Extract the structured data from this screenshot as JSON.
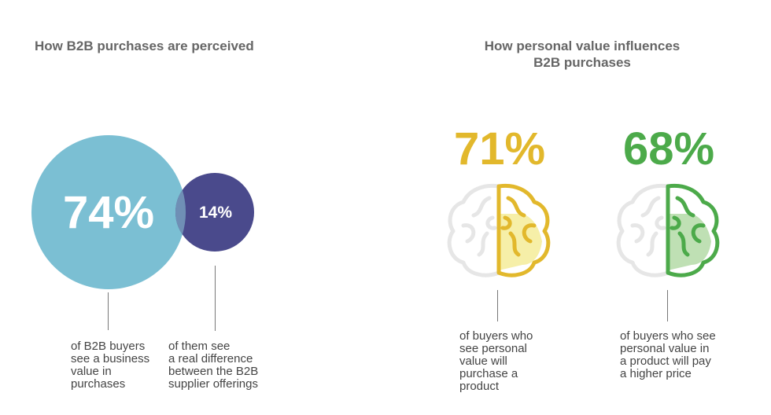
{
  "left_panel": {
    "title": "How B2B purchases are perceived",
    "bubbles": [
      {
        "value_label": "74%",
        "caption": "of B2B buyers\nsee a business\nvalue in\npurchases"
      },
      {
        "value_label": "14%",
        "caption": "of them see\na real difference\nbetween the B2B\nsupplier offerings"
      }
    ]
  },
  "right_panel": {
    "title": "How personal value influences\nB2B purchases",
    "brains": [
      {
        "value_label": "71%",
        "caption": "of buyers who\nsee personal\nvalue will\npurchase a\nproduct"
      },
      {
        "value_label": "68%",
        "caption": "of buyers who see\npersonal value in\na product will pay\na higher price"
      }
    ]
  },
  "colors": {
    "bubble_large": "#7bbfd3",
    "bubble_small": "#4a4a8c",
    "brain_yellow": "#e2b82c",
    "brain_green": "#4caa4a",
    "brain_outline_grey": "#e6e6e6"
  },
  "chart_data": [
    {
      "type": "bubble",
      "title": "How B2B purchases are perceived",
      "categories": [
        "of B2B buyers see a business value in purchases",
        "of them see a real difference between the B2B supplier offerings"
      ],
      "values": [
        74,
        14
      ],
      "unit": "%"
    },
    {
      "type": "pictogram",
      "title": "How personal value influences B2B purchases",
      "categories": [
        "of buyers who see personal value will purchase a product",
        "of buyers who see personal value in a product will pay a higher price"
      ],
      "values": [
        71,
        68
      ],
      "unit": "%"
    }
  ]
}
